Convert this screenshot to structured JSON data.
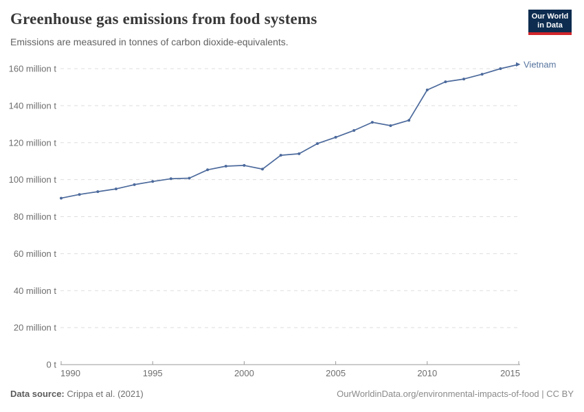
{
  "header": {
    "title": "Greenhouse gas emissions from food systems",
    "subtitle": "Emissions are measured in tonnes of carbon dioxide-equivalents.",
    "logo": {
      "line1": "Our World",
      "line2": "in Data"
    }
  },
  "colors": {
    "logo_bg": "#0d2c4f",
    "logo_accent": "#d2262b",
    "series_blue": "#4C6A9C",
    "series_label_blue": "#56749e",
    "grid": "#dddddd",
    "axis": "#999999",
    "tick_text": "#6e6e6e"
  },
  "chart_data": {
    "type": "line",
    "title": "Greenhouse gas emissions from food systems",
    "subtitle": "Emissions are measured in tonnes of carbon dioxide-equivalents.",
    "xlabel": "",
    "ylabel": "",
    "unit": "million t CO2-eq",
    "grid": "horizontal-dashed",
    "legend": "inline-end-of-line-label",
    "ylim": [
      0,
      160
    ],
    "xlim": [
      1990,
      2015
    ],
    "x_ticks": [
      1990,
      1995,
      2000,
      2005,
      2010,
      2015
    ],
    "y_ticks": [
      {
        "value": 0,
        "label": "0 t"
      },
      {
        "value": 20,
        "label": "20 million t"
      },
      {
        "value": 40,
        "label": "40 million t"
      },
      {
        "value": 60,
        "label": "60 million t"
      },
      {
        "value": 80,
        "label": "80 million t"
      },
      {
        "value": 100,
        "label": "100 million t"
      },
      {
        "value": 120,
        "label": "120 million t"
      },
      {
        "value": 140,
        "label": "140 million t"
      },
      {
        "value": 160,
        "label": "160 million t"
      }
    ],
    "series": [
      {
        "name": "Vietnam",
        "color": "#4C6A9C",
        "label_color": "#56749e",
        "x": [
          1990,
          1991,
          1992,
          1993,
          1994,
          1995,
          1996,
          1997,
          1998,
          1999,
          2000,
          2001,
          2002,
          2003,
          2004,
          2005,
          2006,
          2007,
          2008,
          2009,
          2010,
          2011,
          2012,
          2013,
          2014,
          2015
        ],
        "values": [
          90.0,
          92.0,
          93.5,
          95.0,
          97.3,
          99.0,
          100.5,
          100.8,
          105.3,
          107.3,
          107.7,
          105.7,
          113.2,
          114.0,
          119.5,
          122.9,
          126.6,
          131.0,
          129.2,
          132.1,
          148.5,
          152.9,
          154.4,
          157.0,
          160.0,
          162.3
        ]
      }
    ]
  },
  "footer": {
    "source_label": "Data source:",
    "source_value": " Crippa et al. (2021)",
    "credit": "OurWorldinData.org/environmental-impacts-of-food | CC BY"
  }
}
